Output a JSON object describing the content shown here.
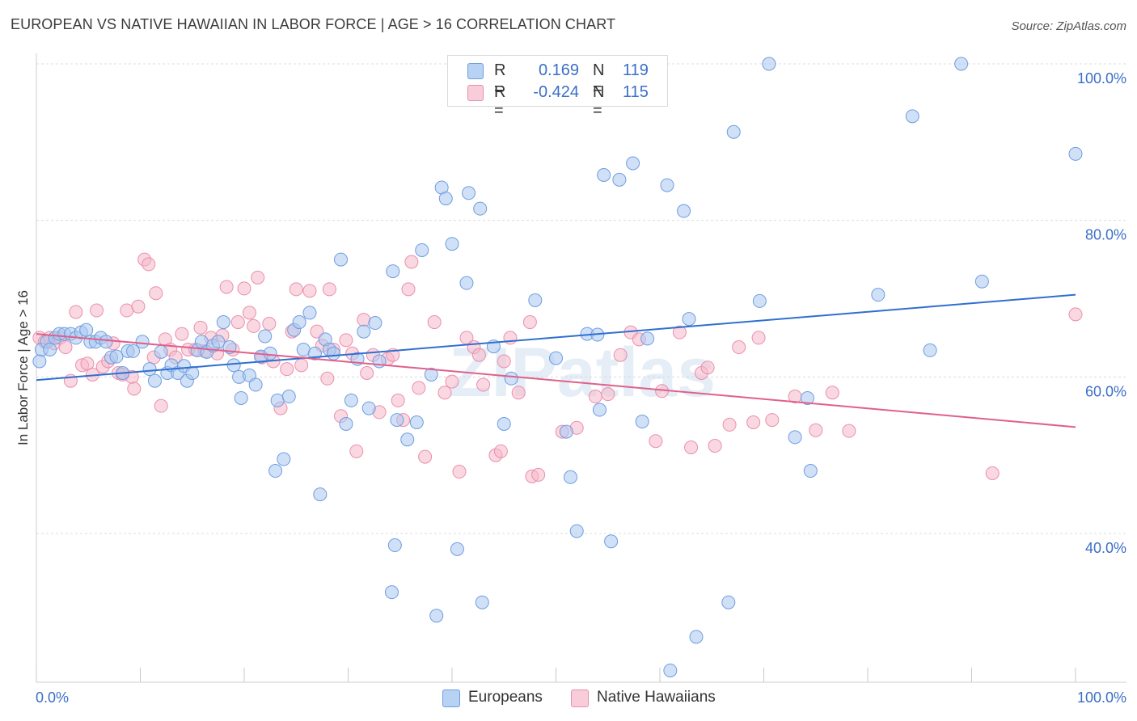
{
  "header": {
    "title": "EUROPEAN VS NATIVE HAWAIIAN IN LABOR FORCE | AGE > 16 CORRELATION CHART",
    "source": "Source: ZipAtlas.com"
  },
  "legend": {
    "rows": [
      {
        "r_label": "R =",
        "r_value": "0.169",
        "n_label": "N =",
        "n_value": "119"
      },
      {
        "r_label": "R =",
        "r_value": "-0.424",
        "n_label": "N =",
        "n_value": "115"
      }
    ]
  },
  "bottom_legend": {
    "items": [
      "Europeans",
      "Native Hawaiians"
    ]
  },
  "watermark": "ZIPatlas",
  "colors": {
    "blue_fill": "#a9c8f0",
    "blue_stroke": "#6f9de0",
    "blue_line": "#2f6fd0",
    "pink_fill": "#f5b8cb",
    "pink_stroke": "#ea8fac",
    "pink_line": "#e0608a",
    "axis_label": "#3b6fc7",
    "grid": "#dcdcdc"
  },
  "chart_data": {
    "type": "scatter",
    "title": "EUROPEAN VS NATIVE HAWAIIAN IN LABOR FORCE | AGE > 16 CORRELATION CHART",
    "xlabel": "",
    "ylabel": "In Labor Force | Age > 16",
    "xlim": [
      0,
      100
    ],
    "ylim": [
      21,
      100
    ],
    "x_tick_labels": [
      "0.0%",
      "100.0%"
    ],
    "y_ticks": [
      40,
      60,
      80,
      100
    ],
    "y_tick_labels": [
      "40.0%",
      "60.0%",
      "80.0%",
      "100.0%"
    ],
    "grid": true,
    "legend_position": "top-center",
    "series": [
      {
        "name": "Europeans",
        "color": "#a9c8f0",
        "trend": {
          "x": [
            0,
            100
          ],
          "y": [
            59.6,
            70.5
          ]
        },
        "points": [
          [
            0.3,
            62
          ],
          [
            0.5,
            63.5
          ],
          [
            1,
            64.5
          ],
          [
            1.3,
            63.5
          ],
          [
            1.8,
            65
          ],
          [
            2.2,
            65.5
          ],
          [
            2.7,
            65.5
          ],
          [
            3.3,
            65.5
          ],
          [
            3.8,
            65
          ],
          [
            4.3,
            65.7
          ],
          [
            4.8,
            66
          ],
          [
            5.2,
            64.5
          ],
          [
            5.7,
            64.5
          ],
          [
            6.2,
            65
          ],
          [
            6.7,
            64.5
          ],
          [
            7.2,
            62.5
          ],
          [
            7.7,
            62.6
          ],
          [
            8.3,
            60.5
          ],
          [
            8.8,
            63.3
          ],
          [
            9.3,
            63.3
          ],
          [
            10.2,
            64.5
          ],
          [
            10.9,
            61
          ],
          [
            11.4,
            59.5
          ],
          [
            12,
            63.2
          ],
          [
            12.6,
            60.5
          ],
          [
            13,
            61.5
          ],
          [
            13.6,
            60.5
          ],
          [
            14.2,
            61.4
          ],
          [
            14.5,
            59.5
          ],
          [
            15,
            60.5
          ],
          [
            15.5,
            63.4
          ],
          [
            15.9,
            64.5
          ],
          [
            16.4,
            63.2
          ],
          [
            17,
            64
          ],
          [
            17.5,
            64.5
          ],
          [
            18,
            67
          ],
          [
            18.6,
            63.8
          ],
          [
            19,
            61.5
          ],
          [
            19.5,
            60
          ],
          [
            19.7,
            57.3
          ],
          [
            20.5,
            60.2
          ],
          [
            21.1,
            59
          ],
          [
            21.6,
            62.6
          ],
          [
            22,
            65.2
          ],
          [
            22.5,
            63
          ],
          [
            23,
            48
          ],
          [
            23.2,
            57
          ],
          [
            23.8,
            49.5
          ],
          [
            24.3,
            57.5
          ],
          [
            24.8,
            66
          ],
          [
            25.3,
            67
          ],
          [
            25.7,
            63.5
          ],
          [
            26.3,
            68.2
          ],
          [
            26.8,
            63
          ],
          [
            27.3,
            45
          ],
          [
            27.8,
            64.8
          ],
          [
            28.2,
            63.5
          ],
          [
            28.6,
            63
          ],
          [
            29.3,
            75
          ],
          [
            29.8,
            54
          ],
          [
            30.3,
            57
          ],
          [
            30.9,
            62.3
          ],
          [
            31.5,
            65.8
          ],
          [
            32,
            56
          ],
          [
            32.6,
            66.9
          ],
          [
            33,
            62
          ],
          [
            34.3,
            73.5
          ],
          [
            34.5,
            38.5
          ],
          [
            34.7,
            54.5
          ],
          [
            34.2,
            32.5
          ],
          [
            35.7,
            52
          ],
          [
            36.6,
            54.2
          ],
          [
            37.1,
            76.2
          ],
          [
            38,
            60.3
          ],
          [
            38.5,
            29.5
          ],
          [
            39,
            84.2
          ],
          [
            39.4,
            82.8
          ],
          [
            40,
            77
          ],
          [
            40.5,
            38
          ],
          [
            41.4,
            72
          ],
          [
            41.6,
            83.5
          ],
          [
            42.7,
            81.5
          ],
          [
            42.9,
            31.2
          ],
          [
            44,
            63.9
          ],
          [
            45,
            54
          ],
          [
            45.7,
            59.8
          ],
          [
            48,
            69.8
          ],
          [
            50,
            62.4
          ],
          [
            51,
            53
          ],
          [
            51.4,
            47.2
          ],
          [
            52,
            40.3
          ],
          [
            53,
            65.5
          ],
          [
            54,
            65.4
          ],
          [
            54.2,
            55.8
          ],
          [
            54.6,
            85.8
          ],
          [
            55.3,
            39
          ],
          [
            56.1,
            85.2
          ],
          [
            57.4,
            87.3
          ],
          [
            58.3,
            54.3
          ],
          [
            58.8,
            64.9
          ],
          [
            60.7,
            84.5
          ],
          [
            61,
            22.5
          ],
          [
            62.3,
            81.2
          ],
          [
            62.8,
            67.4
          ],
          [
            63.5,
            26.8
          ],
          [
            66.6,
            31.2
          ],
          [
            67.1,
            91.3
          ],
          [
            69.6,
            69.7
          ],
          [
            70.5,
            100
          ],
          [
            73,
            52.3
          ],
          [
            74.2,
            57.3
          ],
          [
            74.5,
            48
          ],
          [
            81,
            70.5
          ],
          [
            84.3,
            93.3
          ],
          [
            86,
            63.4
          ],
          [
            89,
            100
          ],
          [
            91,
            72.2
          ],
          [
            100,
            88.5
          ]
        ]
      },
      {
        "name": "Native Hawaiians",
        "color": "#f5b8cb",
        "trend": {
          "x": [
            0,
            100
          ],
          "y": [
            65.5,
            53.6
          ]
        },
        "points": [
          [
            0.3,
            65
          ],
          [
            0.8,
            64.5
          ],
          [
            1.3,
            65
          ],
          [
            1.7,
            64.3
          ],
          [
            2.3,
            65
          ],
          [
            2.8,
            63.8
          ],
          [
            3.3,
            59.5
          ],
          [
            3.8,
            68.3
          ],
          [
            4.4,
            61.5
          ],
          [
            4.9,
            61.7
          ],
          [
            5.4,
            60.3
          ],
          [
            5.8,
            68.5
          ],
          [
            6.4,
            61.3
          ],
          [
            6.9,
            62
          ],
          [
            7.4,
            64.3
          ],
          [
            7.9,
            60.5
          ],
          [
            8.3,
            60.3
          ],
          [
            8.7,
            68.5
          ],
          [
            9.2,
            60
          ],
          [
            9.4,
            58.5
          ],
          [
            9.8,
            69
          ],
          [
            10.4,
            75
          ],
          [
            10.8,
            74.4
          ],
          [
            11.3,
            62.5
          ],
          [
            11.5,
            70.7
          ],
          [
            12,
            56.3
          ],
          [
            12.4,
            64.8
          ],
          [
            12.9,
            63.5
          ],
          [
            13.4,
            62.5
          ],
          [
            14,
            65.5
          ],
          [
            14.6,
            63.5
          ],
          [
            15.3,
            63.5
          ],
          [
            15.8,
            66.3
          ],
          [
            16.2,
            63.3
          ],
          [
            16.8,
            65
          ],
          [
            17.4,
            63
          ],
          [
            17.9,
            65.3
          ],
          [
            18.3,
            71.5
          ],
          [
            18.9,
            63.5
          ],
          [
            19.4,
            67
          ],
          [
            20,
            71.3
          ],
          [
            20.5,
            68.2
          ],
          [
            20.9,
            66.5
          ],
          [
            21.3,
            72.7
          ],
          [
            21.7,
            62.5
          ],
          [
            22.4,
            66.8
          ],
          [
            22.8,
            62
          ],
          [
            23.5,
            56
          ],
          [
            24.1,
            61
          ],
          [
            24.6,
            65.8
          ],
          [
            25,
            71.2
          ],
          [
            25.5,
            61.5
          ],
          [
            26.3,
            71
          ],
          [
            27,
            65.8
          ],
          [
            27.5,
            64
          ],
          [
            28,
            59.8
          ],
          [
            28.2,
            71.2
          ],
          [
            28.6,
            63.5
          ],
          [
            29.3,
            55
          ],
          [
            29.8,
            64.7
          ],
          [
            30.4,
            63
          ],
          [
            30.8,
            50.5
          ],
          [
            31.5,
            67.3
          ],
          [
            31.8,
            60.5
          ],
          [
            32.4,
            62.8
          ],
          [
            33,
            55.5
          ],
          [
            33.8,
            62.3
          ],
          [
            34.3,
            62.8
          ],
          [
            34.8,
            57
          ],
          [
            35.3,
            54.5
          ],
          [
            35.8,
            71.2
          ],
          [
            36.1,
            74.7
          ],
          [
            36.8,
            58.6
          ],
          [
            37.4,
            49.8
          ],
          [
            38.3,
            67
          ],
          [
            39.3,
            58
          ],
          [
            40,
            59.4
          ],
          [
            40.7,
            47.9
          ],
          [
            41.4,
            65
          ],
          [
            42.1,
            63.8
          ],
          [
            42.6,
            62.8
          ],
          [
            43,
            59
          ],
          [
            44.2,
            50
          ],
          [
            44.7,
            50.5
          ],
          [
            45,
            62
          ],
          [
            45.6,
            65
          ],
          [
            46.4,
            58
          ],
          [
            47.7,
            47.3
          ],
          [
            47.5,
            67
          ],
          [
            48.3,
            47.5
          ],
          [
            50.6,
            53
          ],
          [
            52,
            53.5
          ],
          [
            53.8,
            57.5
          ],
          [
            55,
            57.8
          ],
          [
            56.2,
            62.8
          ],
          [
            57.2,
            65.7
          ],
          [
            58,
            64.8
          ],
          [
            59.6,
            51.8
          ],
          [
            60.2,
            58.2
          ],
          [
            61.9,
            65.7
          ],
          [
            63,
            51
          ],
          [
            64,
            60.5
          ],
          [
            64.6,
            61.2
          ],
          [
            65.3,
            51.2
          ],
          [
            66.7,
            53.9
          ],
          [
            67.6,
            63.8
          ],
          [
            69,
            54.2
          ],
          [
            69.5,
            65
          ],
          [
            70.8,
            54.5
          ],
          [
            73,
            57.5
          ],
          [
            75,
            53.2
          ],
          [
            76.6,
            58
          ],
          [
            78.2,
            53.1
          ],
          [
            92,
            47.7
          ],
          [
            100,
            68
          ]
        ]
      }
    ]
  }
}
